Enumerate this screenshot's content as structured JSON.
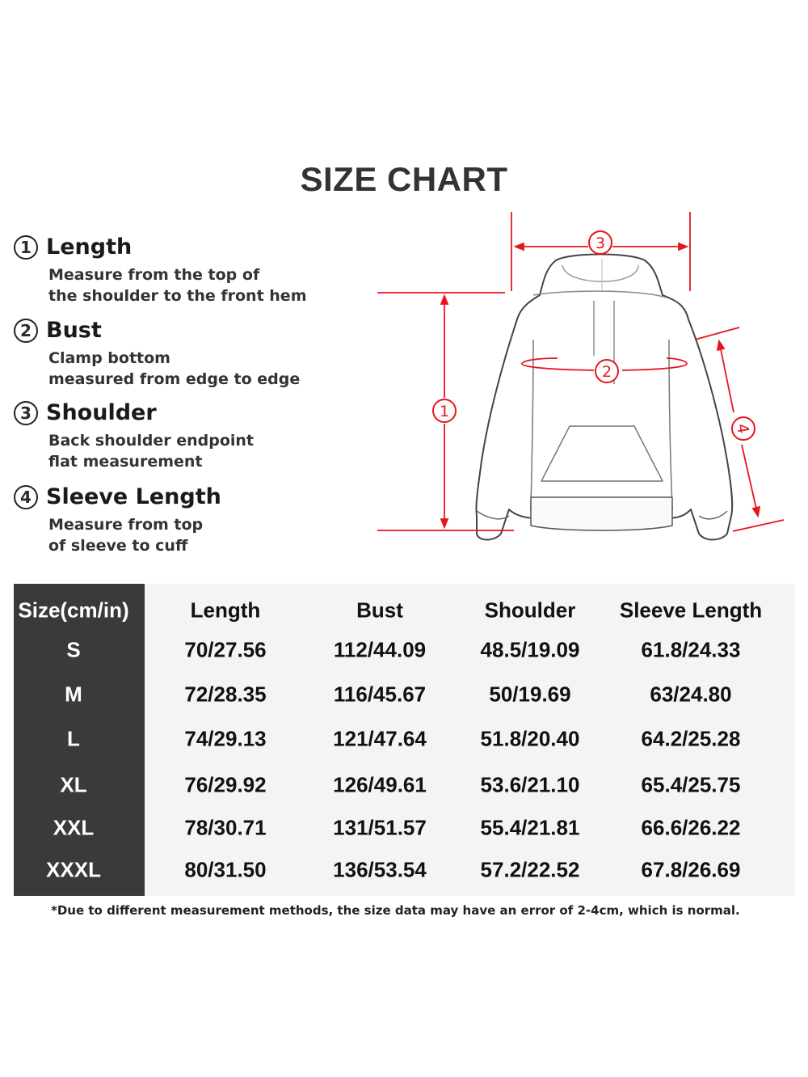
{
  "title": "SIZE CHART",
  "legend": [
    {
      "number": "1",
      "name": "Length",
      "desc": [
        "Measure from the top of",
        "the shoulder to the front hem"
      ]
    },
    {
      "number": "2",
      "name": "Bust",
      "desc": [
        "Clamp bottom",
        "measured from edge to edge"
      ]
    },
    {
      "number": "3",
      "name": "Shoulder",
      "desc": [
        "Back shoulder endpoint",
        "flat measurement"
      ]
    },
    {
      "number": "4",
      "name": "Sleeve Length",
      "desc": [
        "Measure from top",
        "of sleeve to cuff"
      ]
    }
  ],
  "diagram": {
    "markers": [
      "1",
      "2",
      "3",
      "4"
    ],
    "accent_color": "#e8141c"
  },
  "table": {
    "headers": [
      "Size(cm/in)",
      "Length",
      "Bust",
      "Shoulder",
      "Sleeve Length"
    ],
    "rows": [
      [
        "S",
        "70/27.56",
        "112/44.09",
        "48.5/19.09",
        "61.8/24.33"
      ],
      [
        "M",
        "72/28.35",
        "116/45.67",
        "50/19.69",
        "63/24.80"
      ],
      [
        "L",
        "74/29.13",
        "121/47.64",
        "51.8/20.40",
        "64.2/25.28"
      ],
      [
        "XL",
        "76/29.92",
        "126/49.61",
        "53.6/21.10",
        "65.4/25.75"
      ],
      [
        "XXL",
        "78/30.71",
        "131/51.57",
        "55.4/21.81",
        "66.6/26.22"
      ],
      [
        "XXXL",
        "80/31.50",
        "136/53.54",
        "57.2/22.52",
        "67.8/26.69"
      ]
    ]
  },
  "footnote": "*Due to different measurement methods, the size data may have an error of 2-4cm, which is normal."
}
